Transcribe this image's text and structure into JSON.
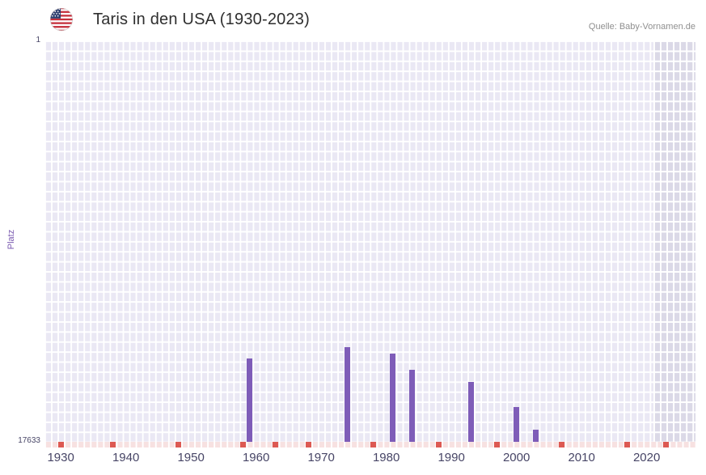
{
  "header": {
    "title": "Taris in den USA (1930-2023)",
    "source": "Quelle: Baby-Vornamen.de"
  },
  "axes": {
    "y_label": "Platz",
    "y_top_label": "1",
    "y_bottom_label": "17633",
    "x_ticks": [
      "1930",
      "1940",
      "1950",
      "1960",
      "1970",
      "1980",
      "1990",
      "2000",
      "2010",
      "2020"
    ]
  },
  "chart_data": {
    "type": "bar",
    "title": "Taris in den USA (1930-2023)",
    "xlabel": "",
    "ylabel": "Platz",
    "y_axis": {
      "top_rank": 1,
      "bottom_rank": 17633,
      "inverted": true
    },
    "x_domain": [
      1927.5,
      2027.5
    ],
    "grid": true,
    "series": [
      {
        "name": "Taris",
        "points": [
          {
            "year": 1959,
            "rank": 13970
          },
          {
            "year": 1974,
            "rank": 13470
          },
          {
            "year": 1981,
            "rank": 13760
          },
          {
            "year": 1984,
            "rank": 14470
          },
          {
            "year": 1993,
            "rank": 15000
          },
          {
            "year": 2000,
            "rank": 16100
          },
          {
            "year": 2003,
            "rank": 17100
          }
        ]
      }
    ],
    "unranked_tick_years": [
      1930,
      1938,
      1948,
      1958,
      1963,
      1968,
      1978,
      1988,
      1997,
      2007,
      2017,
      2023
    ],
    "highlight_band": {
      "from_year": 2021,
      "to_year": 2027.5
    },
    "colors": {
      "bar": "#7e5cb8",
      "plot_bg": "#eae8f4",
      "band_bg": "#dbd9e7",
      "grid_line": "#ffffff",
      "unranked_strip": "#f7e1e1",
      "unranked_tick": "#dd5952",
      "x_tick_text": "#474566",
      "y_tick_text": "#474566",
      "axis_title_text": "#7a5ab0",
      "title_text": "#2f2f2f",
      "source_text": "#8f8f8f"
    }
  }
}
